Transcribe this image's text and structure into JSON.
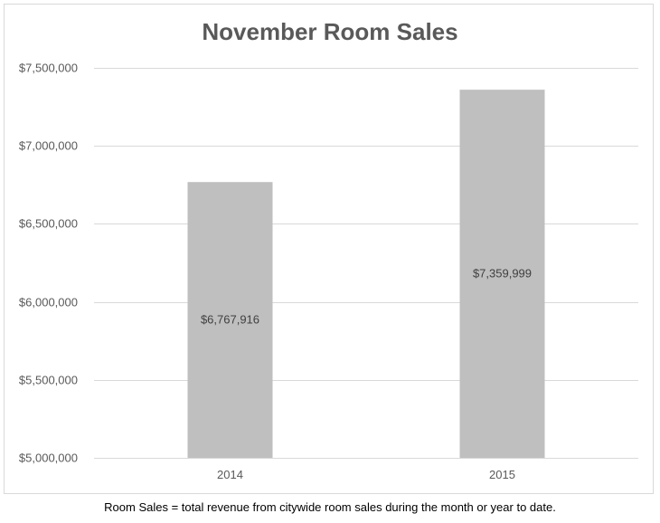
{
  "chart_data": {
    "type": "bar",
    "title": "November Room Sales",
    "categories": [
      "2014",
      "2015"
    ],
    "values": [
      6767916,
      7359999
    ],
    "data_labels": [
      "$6,767,916",
      "$7,359,999"
    ],
    "xlabel": "",
    "ylabel": "",
    "ylim": [
      5000000,
      7500000
    ],
    "y_ticks": [
      5000000,
      5500000,
      6000000,
      6500000,
      7000000,
      7500000
    ],
    "y_tick_labels": [
      "$5,000,000",
      "$5,500,000",
      "$6,000,000",
      "$6,500,000",
      "$7,000,000",
      "$7,500,000"
    ],
    "grid": true,
    "legend": "none",
    "colors": {
      "bar": "#bfbfbf",
      "grid": "#d9d9d9",
      "title": "#595959"
    }
  },
  "footnote": "Room Sales = total revenue from citywide room sales during the month or year to date."
}
